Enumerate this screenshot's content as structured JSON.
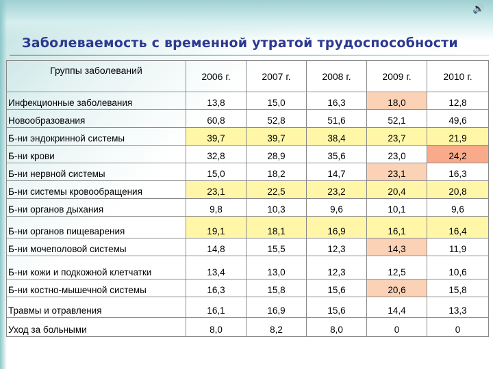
{
  "title": "Заболеваемость с временной утратой трудоспособности",
  "corner_icon": "speaker-icon",
  "colors": {
    "title": "#2b3a8f",
    "highlight_yellow": "#fff6a8",
    "highlight_peach": "#fbd2b6",
    "highlight_red": "#f8aa8a"
  },
  "table": {
    "headers": [
      "Группы заболеваний",
      "2006 г.",
      "2007 г.",
      "2008 г.",
      "2009 г.",
      "2010 г."
    ],
    "rows": [
      {
        "name": "Инфекционные заболевания",
        "values": [
          "13,8",
          "15,0",
          "16,3",
          "18,0",
          "12,8"
        ],
        "highlight": [
          null,
          null,
          null,
          "peach",
          null
        ]
      },
      {
        "name": "Новообразования",
        "values": [
          "60,8",
          "52,8",
          "51,6",
          "52,1",
          "49,6"
        ],
        "highlight": [
          null,
          null,
          null,
          null,
          null
        ]
      },
      {
        "name": "Б-ни эндокринной системы",
        "values": [
          "39,7",
          "39,7",
          "38,4",
          "23,7",
          "21,9"
        ],
        "highlight": [
          "yellow",
          "yellow",
          "yellow",
          "yellow",
          "yellow"
        ]
      },
      {
        "name": "Б-ни крови",
        "values": [
          "32,8",
          "28,9",
          "35,6",
          "23,0",
          "24,2"
        ],
        "highlight": [
          null,
          null,
          null,
          null,
          "red"
        ]
      },
      {
        "name": "Б-ни нервной системы",
        "values": [
          "15,0",
          "18,2",
          "14,7",
          "23,1",
          "16,3"
        ],
        "highlight": [
          null,
          null,
          null,
          "peach",
          null
        ]
      },
      {
        "name": "Б-ни системы кровообращения",
        "values": [
          "23,1",
          "22,5",
          "23,2",
          "20,4",
          "20,8"
        ],
        "highlight": [
          "yellow",
          "yellow",
          "yellow",
          "yellow",
          "yellow"
        ]
      },
      {
        "name": "Б-ни органов дыхания",
        "values": [
          "9,8",
          "10,3",
          "9,6",
          "10,1",
          "9,6"
        ],
        "highlight": [
          null,
          null,
          null,
          null,
          null
        ]
      },
      {
        "name": "Б-ни органов пищеварения",
        "values": [
          "19,1",
          "18,1",
          "16,9",
          "16,1",
          "16,4"
        ],
        "highlight": [
          "yellow",
          "yellow",
          "yellow",
          "yellow",
          "yellow"
        ]
      },
      {
        "name": "Б-ни мочеполовой системы",
        "values": [
          "14,8",
          "15,5",
          "12,3",
          "14,3",
          "11,9"
        ],
        "highlight": [
          null,
          null,
          null,
          "peach",
          null
        ]
      },
      {
        "name": "Б-ни кожи и подкожной клетчатки",
        "values": [
          "13,4",
          "13,0",
          "12,3",
          "12,5",
          "10,6"
        ],
        "highlight": [
          null,
          null,
          null,
          null,
          null
        ]
      },
      {
        "name": "Б-ни костно-мышечной системы",
        "values": [
          "16,3",
          "15,8",
          "15,6",
          "20,6",
          "15,8"
        ],
        "highlight": [
          null,
          null,
          null,
          "peach",
          null
        ]
      },
      {
        "name": "Травмы и отравления",
        "values": [
          "16,1",
          "16,9",
          "15,6",
          "14,4",
          "13,3"
        ],
        "highlight": [
          null,
          null,
          null,
          null,
          null
        ]
      },
      {
        "name": "Уход за больными",
        "values": [
          "8,0",
          "8,2",
          "8,0",
          "0",
          "0"
        ],
        "highlight": [
          null,
          null,
          null,
          null,
          null
        ]
      }
    ]
  }
}
